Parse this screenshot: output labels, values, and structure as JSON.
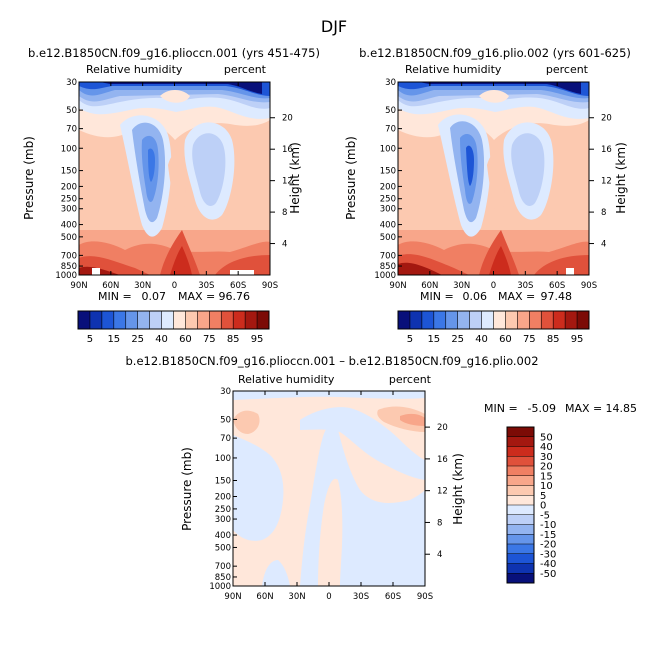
{
  "page": {
    "season": "DJF"
  },
  "chart_data": [
    {
      "type": "heatmap",
      "title": "b.e12.B1850CN.f09_g16.plioccn.001 (yrs 451-475)",
      "left_label": "Relative humidity",
      "right_label": "percent",
      "ylabel": "Pressure (mb)",
      "y2label": "Height (km)",
      "x_ticks": [
        "90N",
        "60N",
        "30N",
        "0",
        "30S",
        "60S",
        "90S"
      ],
      "y_ticks": [
        "30",
        "50",
        "70",
        "100",
        "150",
        "200",
        "250",
        "300",
        "400",
        "500",
        "700",
        "850",
        "1000"
      ],
      "y2_ticks": [
        "20",
        "16",
        "12",
        "8",
        "4"
      ],
      "stats": {
        "min_label": "MIN =",
        "min": "0.07",
        "max_label": "MAX =",
        "max": "96.76"
      },
      "colorbar": {
        "labels": [
          "5",
          "15",
          "25",
          "40",
          "60",
          "75",
          "85",
          "95"
        ],
        "colors": [
          "#08107a",
          "#0e33b0",
          "#1d55d6",
          "#3b77e6",
          "#6595ea",
          "#93b4f0",
          "#bdd0f7",
          "#ddeaff",
          "#ffe7da",
          "#fcc9b0",
          "#f8a68a",
          "#f07f63",
          "#e0513b",
          "#cc2c1d",
          "#a41810",
          "#7c0b06"
        ]
      }
    },
    {
      "type": "heatmap",
      "title": "b.e12.B1850CN.f09_g16.plio.002 (yrs 601-625)",
      "left_label": "Relative humidity",
      "right_label": "percent",
      "ylabel": "Pressure (mb)",
      "y2label": "Height (km)",
      "x_ticks": [
        "90N",
        "60N",
        "30N",
        "0",
        "30S",
        "60S",
        "90S"
      ],
      "y_ticks": [
        "30",
        "50",
        "70",
        "100",
        "150",
        "200",
        "250",
        "300",
        "400",
        "500",
        "700",
        "850",
        "1000"
      ],
      "y2_ticks": [
        "20",
        "16",
        "12",
        "8",
        "4"
      ],
      "stats": {
        "min_label": "MIN =",
        "min": "0.06",
        "max_label": "MAX =",
        "max": "97.48"
      },
      "colorbar": {
        "labels": [
          "5",
          "15",
          "25",
          "40",
          "60",
          "75",
          "85",
          "95"
        ],
        "colors": [
          "#08107a",
          "#0e33b0",
          "#1d55d6",
          "#3b77e6",
          "#6595ea",
          "#93b4f0",
          "#bdd0f7",
          "#ddeaff",
          "#ffe7da",
          "#fcc9b0",
          "#f8a68a",
          "#f07f63",
          "#e0513b",
          "#cc2c1d",
          "#a41810",
          "#7c0b06"
        ]
      }
    },
    {
      "type": "heatmap",
      "title": "b.e12.B1850CN.f09_g16.plioccn.001 – b.e12.B1850CN.f09_g16.plio.002",
      "left_label": "Relative humidity",
      "right_label": "percent",
      "ylabel": "Pressure (mb)",
      "y2label": "Height (km)",
      "x_ticks": [
        "90N",
        "60N",
        "30N",
        "0",
        "30S",
        "60S",
        "90S"
      ],
      "y_ticks": [
        "30",
        "50",
        "70",
        "100",
        "150",
        "200",
        "250",
        "300",
        "400",
        "500",
        "700",
        "850",
        "1000"
      ],
      "y2_ticks": [
        "20",
        "16",
        "12",
        "8",
        "4"
      ],
      "stats": {
        "min_label": "MIN =",
        "min": "-5.09",
        "max_label": "MAX =",
        "max": "14.85"
      },
      "colorbar": {
        "labels": [
          "50",
          "40",
          "30",
          "20",
          "15",
          "10",
          "5",
          "0",
          "-5",
          "-10",
          "-15",
          "-20",
          "-30",
          "-40",
          "-50"
        ],
        "colors": [
          "#7c0b06",
          "#a41810",
          "#cc2c1d",
          "#e0513b",
          "#f07f63",
          "#f8a68a",
          "#fcc9b0",
          "#ffe7da",
          "#ddeaff",
          "#bdd0f7",
          "#93b4f0",
          "#6595ea",
          "#3b77e6",
          "#1d55d6",
          "#0e33b0",
          "#08107a"
        ]
      }
    }
  ]
}
